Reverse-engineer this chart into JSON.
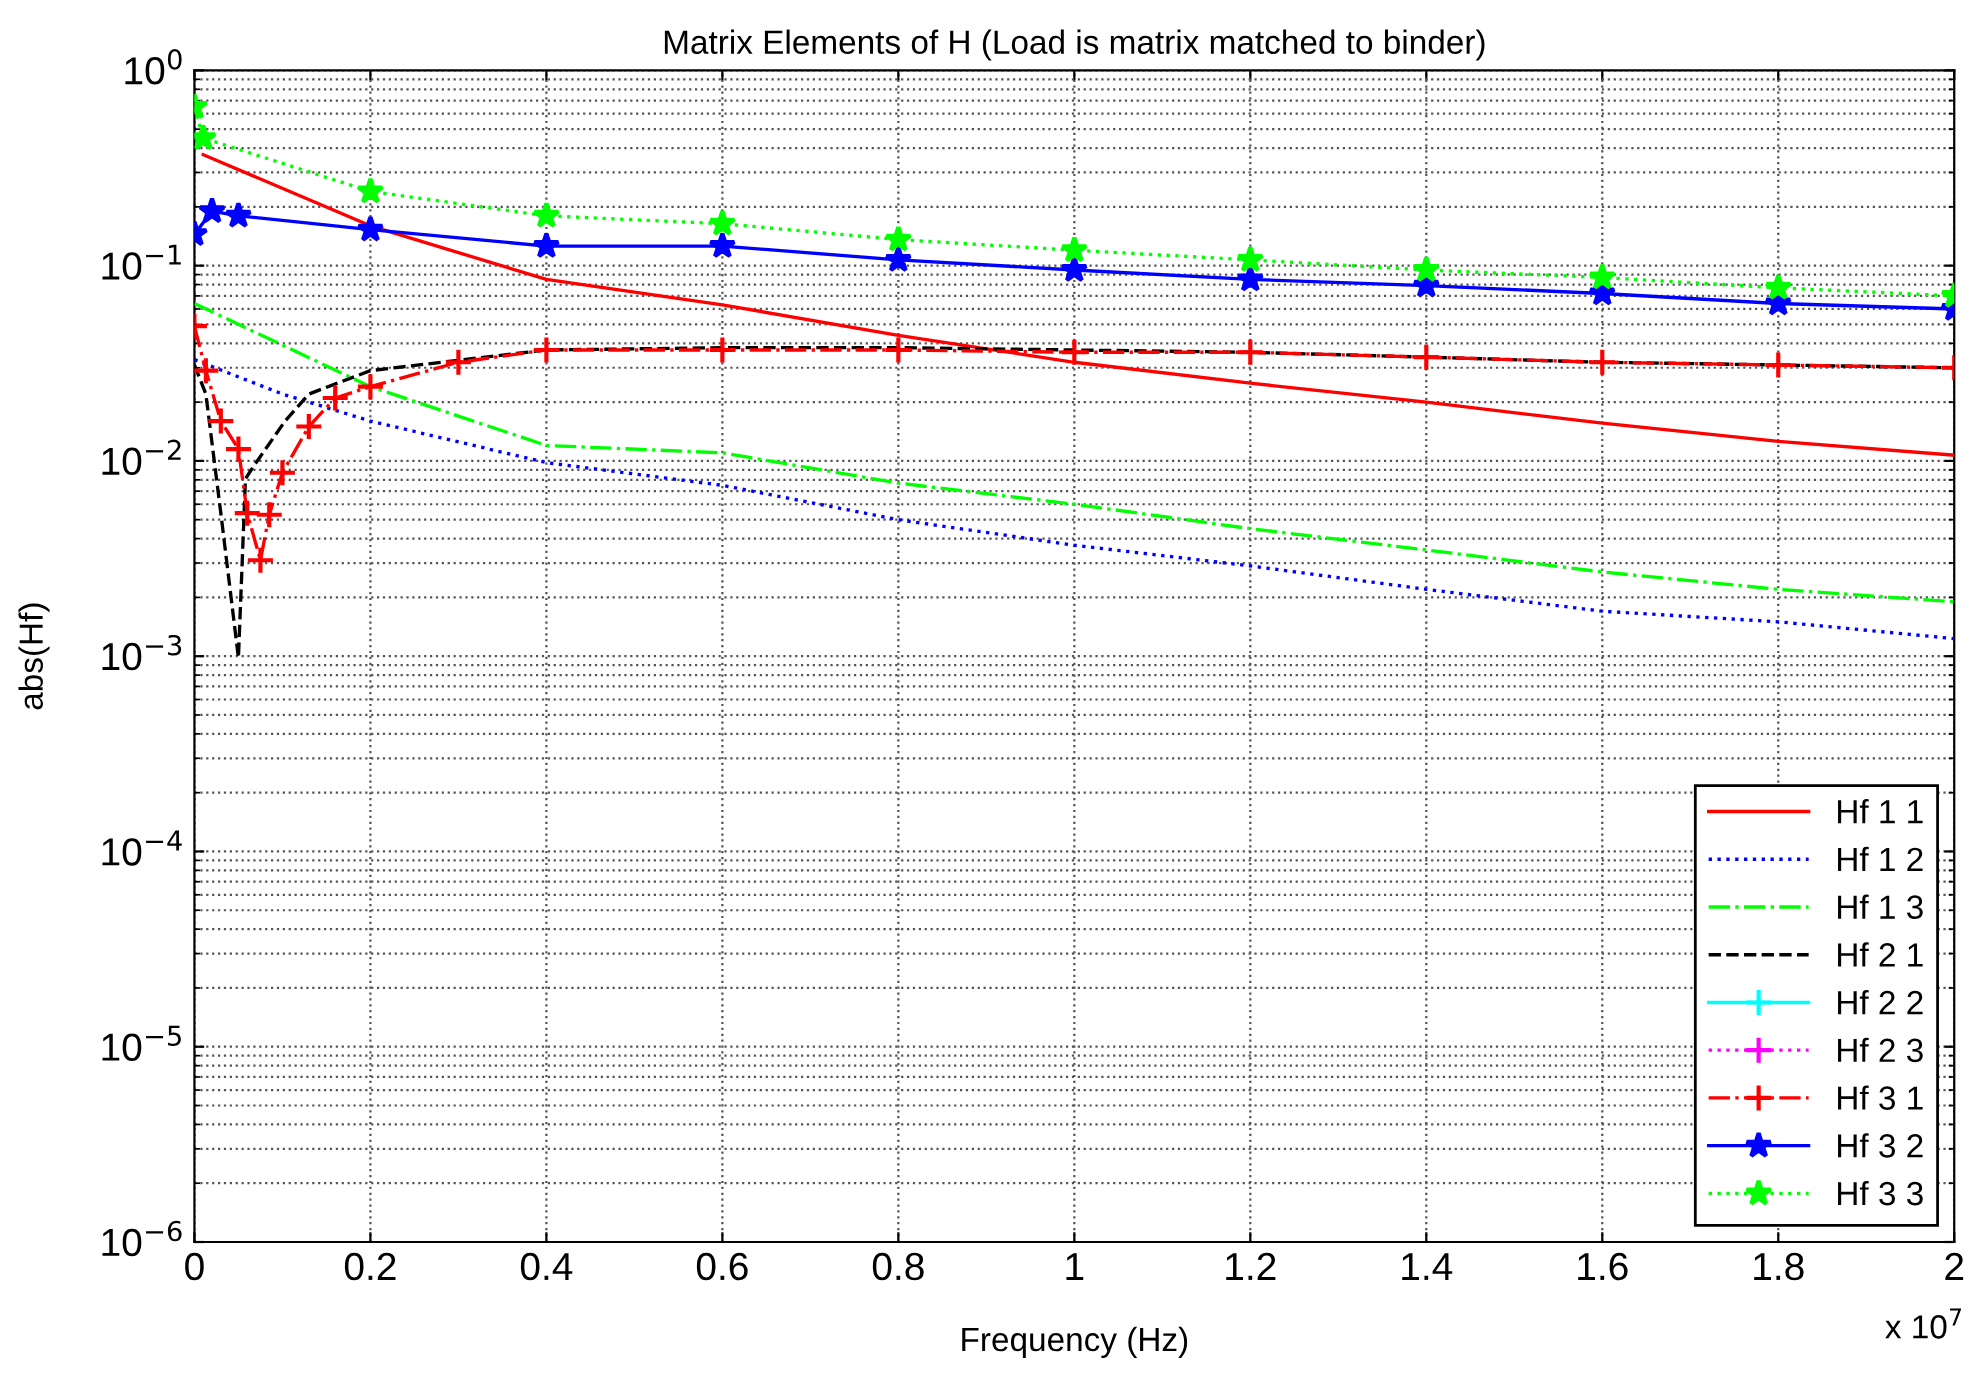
{
  "chart_data": {
    "type": "line",
    "title": "Matrix Elements of H (Load is matrix matched to binder)",
    "xlabel": "Frequency (Hz)",
    "ylabel": "abs(Hf)",
    "log": "y",
    "xlim": [
      0,
      2
    ],
    "ylim": [
      1e-06,
      1
    ],
    "xticks": [
      0,
      0.2,
      0.4,
      0.6,
      0.8,
      1,
      1.2,
      1.4,
      1.6,
      1.8,
      2
    ],
    "yticks": [
      {
        "value": 1e-06,
        "label": "10$^{−6}$"
      },
      {
        "value": 1e-05,
        "label": "10$^{−5}$"
      },
      {
        "value": 0.0001,
        "label": "10$^{−4}$"
      },
      {
        "value": 0.001,
        "label": "10$^{−3}$"
      },
      {
        "value": 0.01,
        "label": "10$^{−2}$"
      },
      {
        "value": 0.1,
        "label": "10$^{−1}$"
      },
      {
        "value": 1,
        "label": "10$^{0}$"
      }
    ],
    "grid": true,
    "legend": "bottom right",
    "annotations": [
      "x 10$^{7}$"
    ],
    "series": [
      {
        "name": "Hf 1 1",
        "color": "#ff0000",
        "line_style": "solid",
        "marker": "none",
        "x": [
          0.01,
          0.2,
          0.4,
          0.6,
          0.8,
          1,
          1.2,
          1.4,
          1.6,
          1.8,
          2
        ],
        "values": [
          0.37,
          0.16,
          0.085,
          0.063,
          0.044,
          0.032,
          0.025,
          0.02,
          0.0156,
          0.0126,
          0.0107
        ]
      },
      {
        "name": "Hf 1 2",
        "color": "#0000ff",
        "line_style": "dotted",
        "marker": "none",
        "x": [
          0,
          0.1,
          0.2,
          0.4,
          0.6,
          0.8,
          1,
          1.2,
          1.4,
          1.6,
          1.8,
          2
        ],
        "values": [
          0.033,
          0.022,
          0.016,
          0.0098,
          0.0075,
          0.005,
          0.0037,
          0.0029,
          0.0022,
          0.0017,
          0.0015,
          0.00123
        ]
      },
      {
        "name": "Hf 1 3",
        "color": "#00ff00",
        "line_style": "dashdot",
        "marker": "none",
        "x": [
          0,
          0.2,
          0.4,
          0.6,
          0.8,
          1,
          1.2,
          1.4,
          1.6,
          1.8,
          2
        ],
        "values": [
          0.064,
          0.024,
          0.012,
          0.011,
          0.0077,
          0.006,
          0.0045,
          0.0035,
          0.0027,
          0.0022,
          0.0019
        ]
      },
      {
        "name": "Hf 2 1",
        "color": "#000000",
        "line_style": "dashed",
        "marker": "none",
        "x": [
          0,
          0.013,
          0.03,
          0.05,
          0.058,
          0.068,
          0.103,
          0.13,
          0.2,
          0.4,
          0.6,
          0.8,
          1,
          1.2,
          1.4,
          1.6,
          1.8,
          2
        ],
        "values": [
          0.031,
          0.022,
          0.0054,
          0.00098,
          0.0081,
          0.0095,
          0.016,
          0.022,
          0.029,
          0.037,
          0.038,
          0.038,
          0.037,
          0.036,
          0.034,
          0.032,
          0.031,
          0.03
        ]
      },
      {
        "name": "Hf 2 2",
        "color": "#00ffff",
        "line_style": "solid",
        "marker": "plus"
      },
      {
        "name": "Hf 2 3",
        "color": "#ff00ff",
        "line_style": "dotted",
        "marker": "plus"
      },
      {
        "name": "Hf 3 1",
        "color": "#ff0000",
        "line_style": "dashdot",
        "marker": "plus",
        "x": [
          0,
          0.013,
          0.03,
          0.05,
          0.06,
          0.075,
          0.085,
          0.1,
          0.13,
          0.16,
          0.2,
          0.3,
          0.4,
          0.6,
          0.8,
          1,
          1.2,
          1.4,
          1.6,
          1.8,
          2
        ],
        "values": [
          0.049,
          0.029,
          0.016,
          0.0115,
          0.0054,
          0.0031,
          0.0053,
          0.0087,
          0.015,
          0.021,
          0.024,
          0.032,
          0.037,
          0.037,
          0.037,
          0.036,
          0.036,
          0.034,
          0.032,
          0.031,
          0.03
        ]
      },
      {
        "name": "Hf 3 2",
        "color": "#0000ff",
        "line_style": "solid",
        "marker": "star",
        "x": [
          0,
          0.02,
          0.05,
          0.2,
          0.4,
          0.6,
          0.8,
          1,
          1.2,
          1.4,
          1.6,
          1.8,
          2
        ],
        "values": [
          0.145,
          0.19,
          0.18,
          0.153,
          0.126,
          0.126,
          0.107,
          0.095,
          0.085,
          0.079,
          0.072,
          0.064,
          0.06
        ]
      },
      {
        "name": "Hf 3 3",
        "color": "#00ff00",
        "line_style": "dotted",
        "marker": "star",
        "x": [
          0,
          0.01,
          0.2,
          0.4,
          0.6,
          0.8,
          1,
          1.2,
          1.4,
          1.6,
          1.8,
          2
        ],
        "values": [
          0.65,
          0.45,
          0.24,
          0.18,
          0.164,
          0.136,
          0.12,
          0.107,
          0.095,
          0.087,
          0.077,
          0.07
        ]
      }
    ]
  }
}
